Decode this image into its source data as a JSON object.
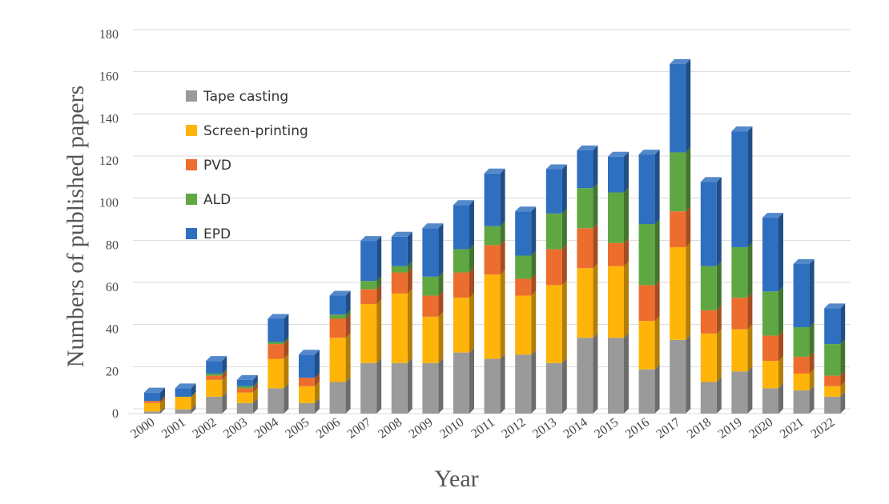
{
  "chart_data": {
    "type": "bar",
    "stacked": true,
    "style": "3d-column",
    "xlabel": "Year",
    "ylabel": "Numbers of published papers",
    "ylim": [
      0,
      180
    ],
    "yticks": [
      0,
      20,
      40,
      60,
      80,
      100,
      120,
      140,
      160,
      180
    ],
    "grid": true,
    "legend_position": "top-left",
    "categories": [
      "2000",
      "2001",
      "2002",
      "2003",
      "2004",
      "2005",
      "2006",
      "2007",
      "2008",
      "2009",
      "2010",
      "2011",
      "2012",
      "2013",
      "2014",
      "2015",
      "2016",
      "2017",
      "2018",
      "2019",
      "2020",
      "2021",
      "2022"
    ],
    "series": [
      {
        "name": "Tape casting",
        "color": "#9a9a9a",
        "values": [
          1,
          2,
          8,
          5,
          12,
          5,
          15,
          24,
          24,
          24,
          29,
          26,
          28,
          24,
          36,
          36,
          21,
          35,
          15,
          20,
          12,
          11,
          8
        ]
      },
      {
        "name": "Screen-printing",
        "color": "#ffb40a",
        "values": [
          4,
          6,
          8,
          5,
          14,
          8,
          21,
          28,
          33,
          22,
          26,
          40,
          28,
          37,
          33,
          34,
          23,
          44,
          23,
          20,
          13,
          8,
          5
        ]
      },
      {
        "name": "PVD",
        "color": "#ed6d2f",
        "values": [
          1,
          0,
          2,
          2,
          7,
          4,
          9,
          7,
          10,
          10,
          12,
          14,
          8,
          17,
          19,
          11,
          17,
          17,
          11,
          15,
          12,
          8,
          5
        ]
      },
      {
        "name": "ALD",
        "color": "#5fa743",
        "values": [
          0,
          0,
          1,
          1,
          1,
          0,
          2,
          4,
          3,
          9,
          11,
          9,
          11,
          17,
          19,
          24,
          29,
          28,
          21,
          24,
          21,
          14,
          15
        ]
      },
      {
        "name": "EPD",
        "color": "#2e6fc0",
        "values": [
          4,
          4,
          6,
          3,
          11,
          11,
          9,
          19,
          14,
          23,
          21,
          25,
          21,
          21,
          18,
          17,
          33,
          42,
          40,
          55,
          35,
          30,
          17
        ]
      }
    ]
  }
}
